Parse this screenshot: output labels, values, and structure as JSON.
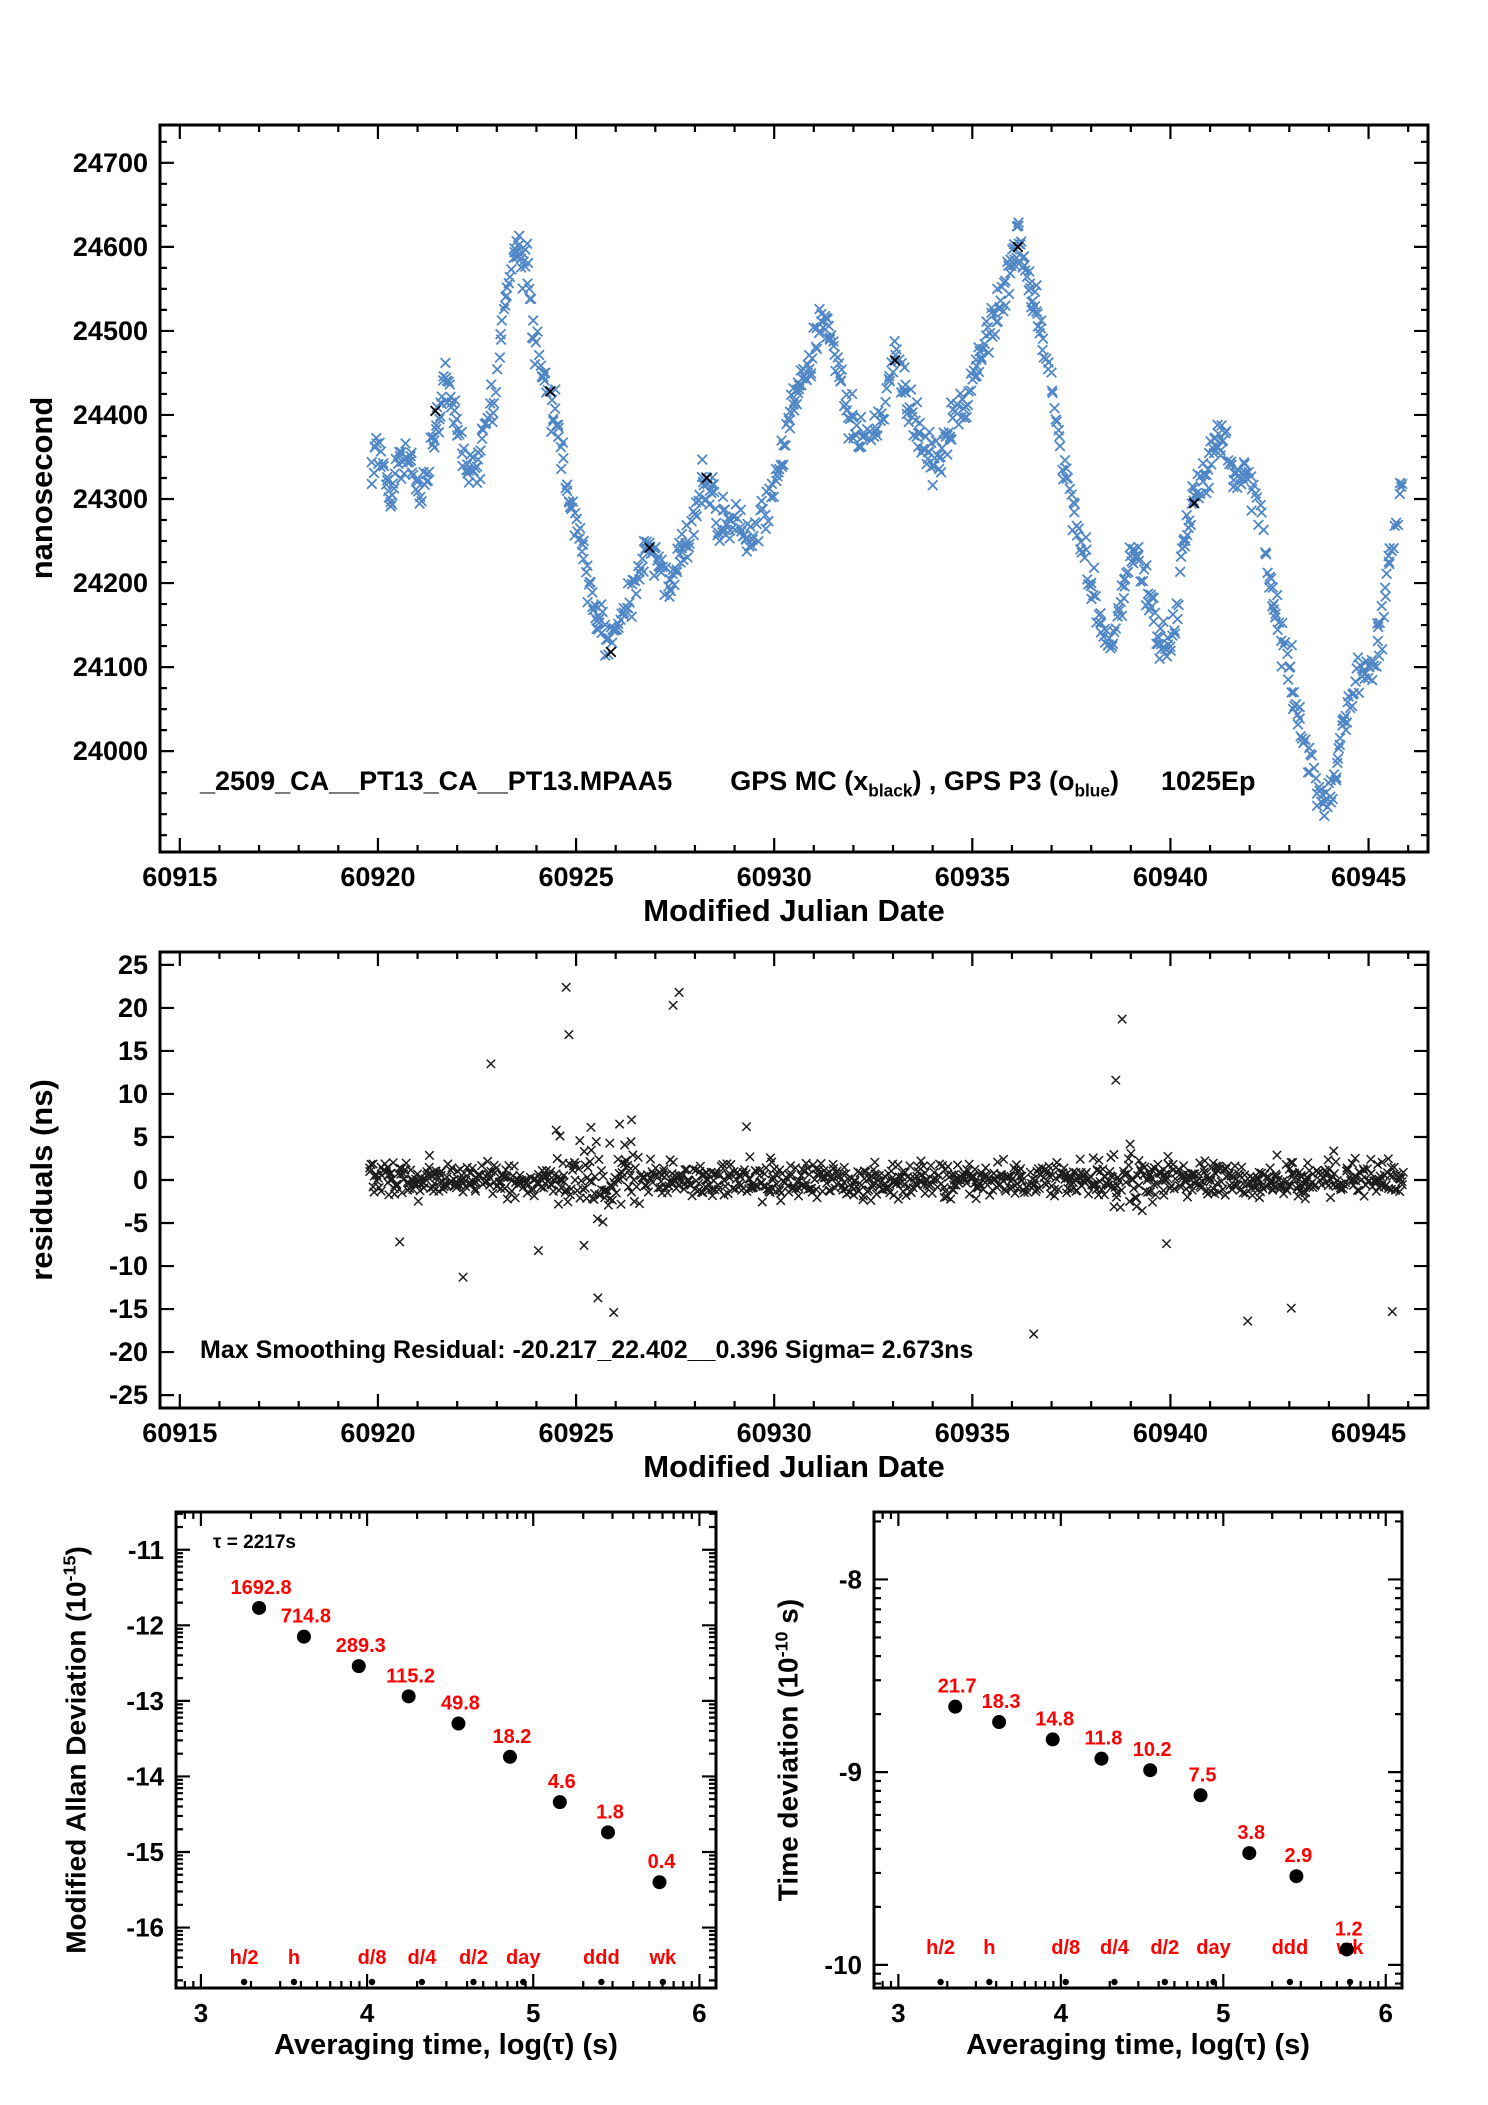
{
  "figure": {
    "background": "#ffffff",
    "top_series_label": {
      "dataset": "_2509_CA__PT13_CA__PT13.MPAA5",
      "mc_pre": "GPS MC (x",
      "mc_sub": "black",
      "between": ") ,  GPS P3 (o",
      "p3_sub": "blue",
      "close": ")",
      "epochs": "1025Ep"
    }
  },
  "chart_data": [
    {
      "id": "phase",
      "type": "scatter",
      "xlabel": "Modified Julian Date",
      "ylabel": "nanosecond",
      "xlim": [
        60914.5,
        60946.5
      ],
      "ylim": [
        23880,
        24745
      ],
      "xticks": [
        60915,
        60920,
        60925,
        60930,
        60935,
        60940,
        60945
      ],
      "yticks": [
        24000,
        24100,
        24200,
        24300,
        24400,
        24500,
        24600,
        24700
      ],
      "xminor_step": 1,
      "yminor_step": 25,
      "series": [
        {
          "name": "GPS P3",
          "color": "#4f86c6",
          "marker": "x",
          "seed": 20240601,
          "step": 0.04,
          "jitter": 21,
          "trend": [
            [
              60919.85,
              24330
            ],
            [
              60920.0,
              24365
            ],
            [
              60920.2,
              24330
            ],
            [
              60920.35,
              24290
            ],
            [
              60920.5,
              24340
            ],
            [
              60920.7,
              24360
            ],
            [
              60920.9,
              24330
            ],
            [
              60921.1,
              24300
            ],
            [
              60921.3,
              24350
            ],
            [
              60921.5,
              24400
            ],
            [
              60921.7,
              24440
            ],
            [
              60921.9,
              24400
            ],
            [
              60922.1,
              24370
            ],
            [
              60922.3,
              24330
            ],
            [
              60922.5,
              24340
            ],
            [
              60922.7,
              24390
            ],
            [
              60922.9,
              24400
            ],
            [
              60923.1,
              24490
            ],
            [
              60923.3,
              24560
            ],
            [
              60923.45,
              24600
            ],
            [
              60923.6,
              24570
            ],
            [
              60923.75,
              24590
            ],
            [
              60923.9,
              24500
            ],
            [
              60924.1,
              24460
            ],
            [
              60924.3,
              24430
            ],
            [
              60924.5,
              24400
            ],
            [
              60924.65,
              24350
            ],
            [
              60924.8,
              24300
            ],
            [
              60925.0,
              24280
            ],
            [
              60925.2,
              24230
            ],
            [
              60925.4,
              24180
            ],
            [
              60925.6,
              24150
            ],
            [
              60925.8,
              24130
            ],
            [
              60926.0,
              24140
            ],
            [
              60926.2,
              24170
            ],
            [
              60926.4,
              24190
            ],
            [
              60926.6,
              24220
            ],
            [
              60926.8,
              24240
            ],
            [
              60927.0,
              24230
            ],
            [
              60927.2,
              24210
            ],
            [
              60927.4,
              24200
            ],
            [
              60927.6,
              24230
            ],
            [
              60927.8,
              24240
            ],
            [
              60928.0,
              24270
            ],
            [
              60928.2,
              24330
            ],
            [
              60928.4,
              24300
            ],
            [
              60928.6,
              24260
            ],
            [
              60928.8,
              24270
            ],
            [
              60929.0,
              24280
            ],
            [
              60929.2,
              24270
            ],
            [
              60929.4,
              24250
            ],
            [
              60929.6,
              24270
            ],
            [
              60929.8,
              24290
            ],
            [
              60930.0,
              24310
            ],
            [
              60930.2,
              24350
            ],
            [
              60930.4,
              24400
            ],
            [
              60930.6,
              24430
            ],
            [
              60930.8,
              24450
            ],
            [
              60931.0,
              24480
            ],
            [
              60931.2,
              24510
            ],
            [
              60931.4,
              24500
            ],
            [
              60931.6,
              24460
            ],
            [
              60931.8,
              24420
            ],
            [
              60932.0,
              24380
            ],
            [
              60932.2,
              24370
            ],
            [
              60932.4,
              24380
            ],
            [
              60932.6,
              24390
            ],
            [
              60932.8,
              24420
            ],
            [
              60933.0,
              24470
            ],
            [
              60933.2,
              24460
            ],
            [
              60933.4,
              24400
            ],
            [
              60933.6,
              24380
            ],
            [
              60933.8,
              24360
            ],
            [
              60934.0,
              24340
            ],
            [
              60934.2,
              24350
            ],
            [
              60934.4,
              24380
            ],
            [
              60934.6,
              24410
            ],
            [
              60934.8,
              24400
            ],
            [
              60935.0,
              24440
            ],
            [
              60935.2,
              24470
            ],
            [
              60935.4,
              24490
            ],
            [
              60935.6,
              24520
            ],
            [
              60935.8,
              24550
            ],
            [
              60936.0,
              24590
            ],
            [
              60936.15,
              24620
            ],
            [
              60936.3,
              24580
            ],
            [
              60936.5,
              24540
            ],
            [
              60936.7,
              24500
            ],
            [
              60936.9,
              24460
            ],
            [
              60937.1,
              24400
            ],
            [
              60937.3,
              24340
            ],
            [
              60937.5,
              24300
            ],
            [
              60937.7,
              24260
            ],
            [
              60937.9,
              24220
            ],
            [
              60938.1,
              24180
            ],
            [
              60938.3,
              24140
            ],
            [
              60938.5,
              24120
            ],
            [
              60938.7,
              24160
            ],
            [
              60938.9,
              24210
            ],
            [
              60939.1,
              24240
            ],
            [
              60939.3,
              24220
            ],
            [
              60939.5,
              24170
            ],
            [
              60939.7,
              24140
            ],
            [
              60939.9,
              24125
            ],
            [
              60940.1,
              24150
            ],
            [
              60940.3,
              24230
            ],
            [
              60940.5,
              24280
            ],
            [
              60940.7,
              24310
            ],
            [
              60940.9,
              24330
            ],
            [
              60941.1,
              24355
            ],
            [
              60941.3,
              24370
            ],
            [
              60941.5,
              24345
            ],
            [
              60941.7,
              24330
            ],
            [
              60941.9,
              24335
            ],
            [
              60942.1,
              24320
            ],
            [
              60942.3,
              24270
            ],
            [
              60942.5,
              24210
            ],
            [
              60942.7,
              24160
            ],
            [
              60942.9,
              24120
            ],
            [
              60943.1,
              24070
            ],
            [
              60943.3,
              24010
            ],
            [
              60943.5,
              23990
            ],
            [
              60943.7,
              23960
            ],
            [
              60943.9,
              23930
            ],
            [
              60944.1,
              23950
            ],
            [
              60944.3,
              24020
            ],
            [
              60944.5,
              24060
            ],
            [
              60944.7,
              24090
            ],
            [
              60944.9,
              24100
            ],
            [
              60945.1,
              24100
            ],
            [
              60945.3,
              24140
            ],
            [
              60945.5,
              24210
            ],
            [
              60945.7,
              24280
            ],
            [
              60945.9,
              24330
            ]
          ]
        },
        {
          "name": "GPS MC",
          "color": "#000000",
          "marker": "x",
          "points": [
            [
              60921.45,
              24405
            ],
            [
              60924.35,
              24428
            ],
            [
              60925.88,
              24118
            ],
            [
              60926.85,
              24242
            ],
            [
              60928.3,
              24325
            ],
            [
              60933.05,
              24465
            ],
            [
              60936.15,
              24600
            ],
            [
              60940.6,
              24295
            ]
          ]
        }
      ]
    },
    {
      "id": "residuals",
      "type": "scatter",
      "xlabel": "Modified Julian Date",
      "ylabel": "residuals (ns)",
      "annotation": "Max Smoothing Residual: -20.217_22.402__0.396  Sigma= 2.673ns",
      "xlim": [
        60914.5,
        60946.5
      ],
      "ylim": [
        -26.5,
        26.5
      ],
      "xticks": [
        60915,
        60920,
        60925,
        60930,
        60935,
        60940,
        60945
      ],
      "yticks": [
        -25,
        -20,
        -15,
        -10,
        -5,
        0,
        5,
        10,
        15,
        20,
        25
      ],
      "xminor_step": 1,
      "color": "#1c1c1c",
      "band": {
        "x_start": 60919.8,
        "x_end": 60945.9,
        "step": 0.034,
        "sigma": 1.7,
        "seed": 77031,
        "wide_regions": [
          [
            60924.4,
            60926.6,
            2.1
          ],
          [
            60938.1,
            60939.3,
            1.8
          ]
        ]
      },
      "outliers": [
        [
          60920.55,
          -7.2
        ],
        [
          60922.15,
          -11.3
        ],
        [
          60922.85,
          13.5
        ],
        [
          60924.05,
          -8.2
        ],
        [
          60924.5,
          5.8
        ],
        [
          60924.75,
          22.4
        ],
        [
          60924.82,
          16.9
        ],
        [
          60925.2,
          -7.6
        ],
        [
          60925.55,
          -13.7
        ],
        [
          60925.95,
          -15.4
        ],
        [
          60926.1,
          6.5
        ],
        [
          60926.4,
          7.0
        ],
        [
          60927.45,
          20.3
        ],
        [
          60927.6,
          21.8
        ],
        [
          60929.3,
          6.2
        ],
        [
          60936.55,
          -17.9
        ],
        [
          60938.62,
          11.6
        ],
        [
          60938.78,
          18.7
        ],
        [
          60939.9,
          -7.4
        ],
        [
          60941.95,
          -16.4
        ],
        [
          60943.05,
          -14.9
        ],
        [
          60945.6,
          -15.3
        ]
      ]
    },
    {
      "id": "mdev",
      "type": "scatter",
      "ylabel_main": "Modified Allan Deviation (10",
      "ylabel_sup": "-15",
      "ylabel_close": ")",
      "xlabel": "Averaging time, log(τ) (s)",
      "annotation": "τ = 2217s",
      "xlim": [
        2.85,
        6.1
      ],
      "ylim": [
        -16.8,
        -10.5
      ],
      "xticks": [
        3,
        4,
        5,
        6
      ],
      "yticks": [
        -16,
        -15,
        -14,
        -13,
        -12,
        -11
      ],
      "log_minor": true,
      "dot_color": "#000000",
      "label_color": "#ff0000",
      "points_x": [
        3.35,
        3.62,
        3.95,
        4.25,
        4.55,
        4.86,
        5.16,
        5.45,
        5.76
      ],
      "points_y": [
        -11.77,
        -12.15,
        -12.54,
        -12.94,
        -13.3,
        -13.74,
        -14.34,
        -14.74,
        -15.4
      ],
      "values": [
        1692.8,
        714.8,
        289.3,
        115.2,
        49.8,
        18.2,
        4.6,
        1.8,
        0.4
      ],
      "value_labels": [
        "1692.8",
        "714.8",
        "289.3",
        "115.2",
        "49.8",
        "18.2",
        "4.6",
        "1.8",
        "0.4"
      ],
      "tau_labels": [
        "h/2",
        "h",
        "d/8",
        "d/4",
        "d/2",
        "day",
        "ddd",
        "wk"
      ],
      "tau_x": [
        3.26,
        3.56,
        4.03,
        4.33,
        4.64,
        4.94,
        5.41,
        5.78
      ]
    },
    {
      "id": "tdev",
      "type": "scatter",
      "ylabel_main": "Time deviation (10",
      "ylabel_sup": "-10",
      "ylabel_close": " s)",
      "xlabel": "Averaging time, log(τ) (s)",
      "xlim": [
        2.85,
        6.1
      ],
      "ylim": [
        -10.12,
        -7.65
      ],
      "xticks": [
        3,
        4,
        5,
        6
      ],
      "yticks": [
        -10,
        -9,
        -8
      ],
      "log_minor": true,
      "dot_color": "#000000",
      "label_color": "#ff0000",
      "points_x": [
        3.35,
        3.62,
        3.95,
        4.25,
        4.55,
        4.86,
        5.16,
        5.45,
        5.76
      ],
      "points_y": [
        -8.66,
        -8.74,
        -8.83,
        -8.93,
        -8.99,
        -9.12,
        -9.42,
        -9.54,
        -9.92
      ],
      "values": [
        21.7,
        18.3,
        14.8,
        11.8,
        10.2,
        7.5,
        3.8,
        2.9,
        1.2
      ],
      "value_labels": [
        "21.7",
        "18.3",
        "14.8",
        "11.8",
        "10.2",
        "7.5",
        "3.8",
        "2.9",
        "1.2"
      ],
      "tau_labels": [
        "h/2",
        "h",
        "d/8",
        "d/4",
        "d/2",
        "day",
        "ddd",
        "wk"
      ],
      "tau_x": [
        3.26,
        3.56,
        4.03,
        4.33,
        4.64,
        4.94,
        5.41,
        5.78
      ]
    }
  ]
}
